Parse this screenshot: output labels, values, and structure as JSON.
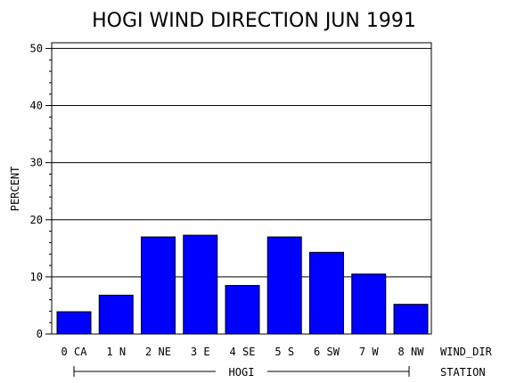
{
  "chart_data": {
    "type": "bar",
    "title": "HOGI WIND DIRECTION JUN 1991",
    "ylabel": "PERCENT",
    "xlabel": "WIND_DIR",
    "group_axis_label": "STATION",
    "group_label": "HOGI",
    "categories": [
      "0 CA",
      "1 N",
      "2 NE",
      "3 E",
      "4 SE",
      "5 S",
      "6 SW",
      "7 W",
      "8 NW"
    ],
    "values": [
      3.9,
      6.8,
      17.0,
      17.3,
      8.5,
      17.0,
      14.3,
      10.5,
      5.2
    ],
    "ylim": [
      0,
      51
    ],
    "yticks": [
      0,
      10,
      20,
      30,
      40,
      50
    ],
    "grid": true,
    "bar_color": "#0000ff"
  }
}
